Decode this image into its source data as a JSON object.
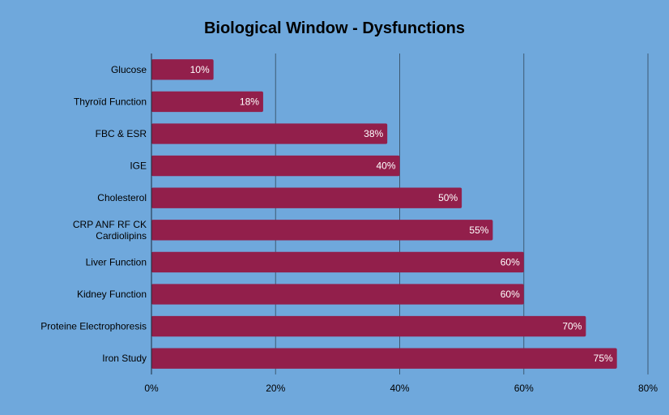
{
  "chart_data": {
    "type": "bar",
    "orientation": "horizontal",
    "title": "Biological Window - Dysfunctions",
    "xlabel": "",
    "ylabel": "",
    "categories": [
      [
        "Glucose"
      ],
      [
        "Thyroïd Function"
      ],
      [
        "FBC & ESR"
      ],
      [
        "IGE"
      ],
      [
        "Cholesterol"
      ],
      [
        "CRP ANF RF CK",
        "Cardiolipins"
      ],
      [
        "Liver Function"
      ],
      [
        "Kidney Function"
      ],
      [
        "Proteine Electrophoresis"
      ],
      [
        "Iron Study"
      ]
    ],
    "values": [
      10,
      18,
      38,
      40,
      50,
      55,
      60,
      60,
      70,
      75
    ],
    "value_labels": [
      "10%",
      "18%",
      "38%",
      "40%",
      "50%",
      "55%",
      "60%",
      "60%",
      "70%",
      "75%"
    ],
    "xlim": [
      0,
      80
    ],
    "x_ticks": [
      0,
      20,
      40,
      60,
      80
    ],
    "x_tick_labels": [
      "0%",
      "20%",
      "40%",
      "60%",
      "80%"
    ],
    "grid": "vertical",
    "legend": "none",
    "colors": {
      "background": "#6fa8dc",
      "bar": "#921f4b",
      "grid": "#3d5a73",
      "axis": "#1a2a3a"
    }
  }
}
